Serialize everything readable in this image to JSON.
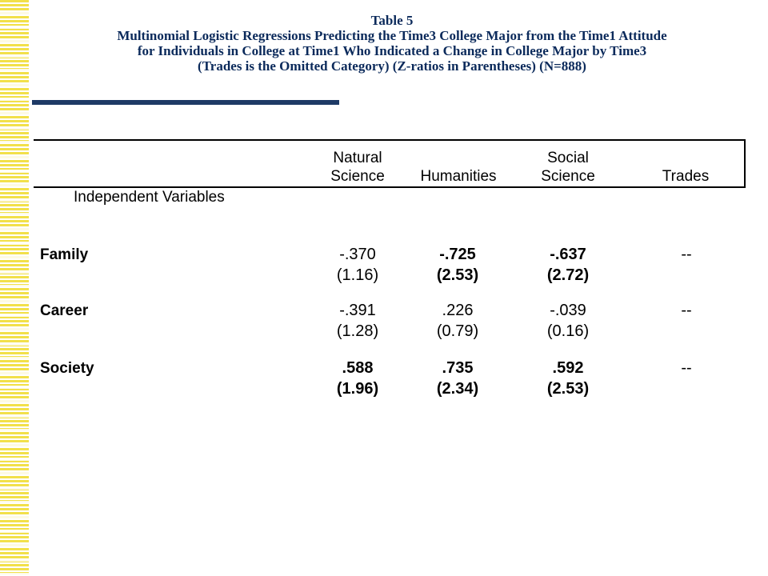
{
  "title": {
    "line1": "Table 5",
    "line2": "Multinomial Logistic Regressions Predicting the Time3 College Major from the Time1 Attitude",
    "line3": "for Individuals in College at Time1 Who Indicated a Change in College Major by Time3",
    "line4": "(Trades is the Omitted Category) (Z-ratios in Parentheses)    (N=888)"
  },
  "colors": {
    "title": "#0b2a5b",
    "accent_bar": "#1e3a66",
    "stripe": "#f2e04a"
  },
  "table": {
    "columns": [
      {
        "line1": "Natural",
        "line2": "Science"
      },
      {
        "line1": "",
        "line2": "Humanities"
      },
      {
        "line1": "Social",
        "line2": "Science"
      },
      {
        "line1": "",
        "line2": "Trades"
      }
    ],
    "row_header": "Independent Variables",
    "rows": [
      {
        "label": "Family",
        "cells": [
          {
            "coef": "-.370",
            "z": "(1.16)",
            "bold": false
          },
          {
            "coef": "-.725",
            "z": "(2.53)",
            "bold": true
          },
          {
            "coef": "-.637",
            "z": "(2.72)",
            "bold": true
          },
          {
            "coef": "--",
            "z": "",
            "bold": false
          }
        ]
      },
      {
        "label": "Career",
        "cells": [
          {
            "coef": "-.391",
            "z": "(1.28)",
            "bold": false
          },
          {
            "coef": ".226",
            "z": "(0.79)",
            "bold": false
          },
          {
            "coef": "-.039",
            "z": "(0.16)",
            "bold": false
          },
          {
            "coef": "--",
            "z": "",
            "bold": false
          }
        ]
      },
      {
        "label": "Society",
        "cells": [
          {
            "coef": ".588",
            "z": "(1.96)",
            "bold": true
          },
          {
            "coef": ".735",
            "z": "(2.34)",
            "bold": true
          },
          {
            "coef": ".592",
            "z": "(2.53)",
            "bold": true
          },
          {
            "coef": "--",
            "z": "",
            "bold": false
          }
        ]
      }
    ]
  }
}
